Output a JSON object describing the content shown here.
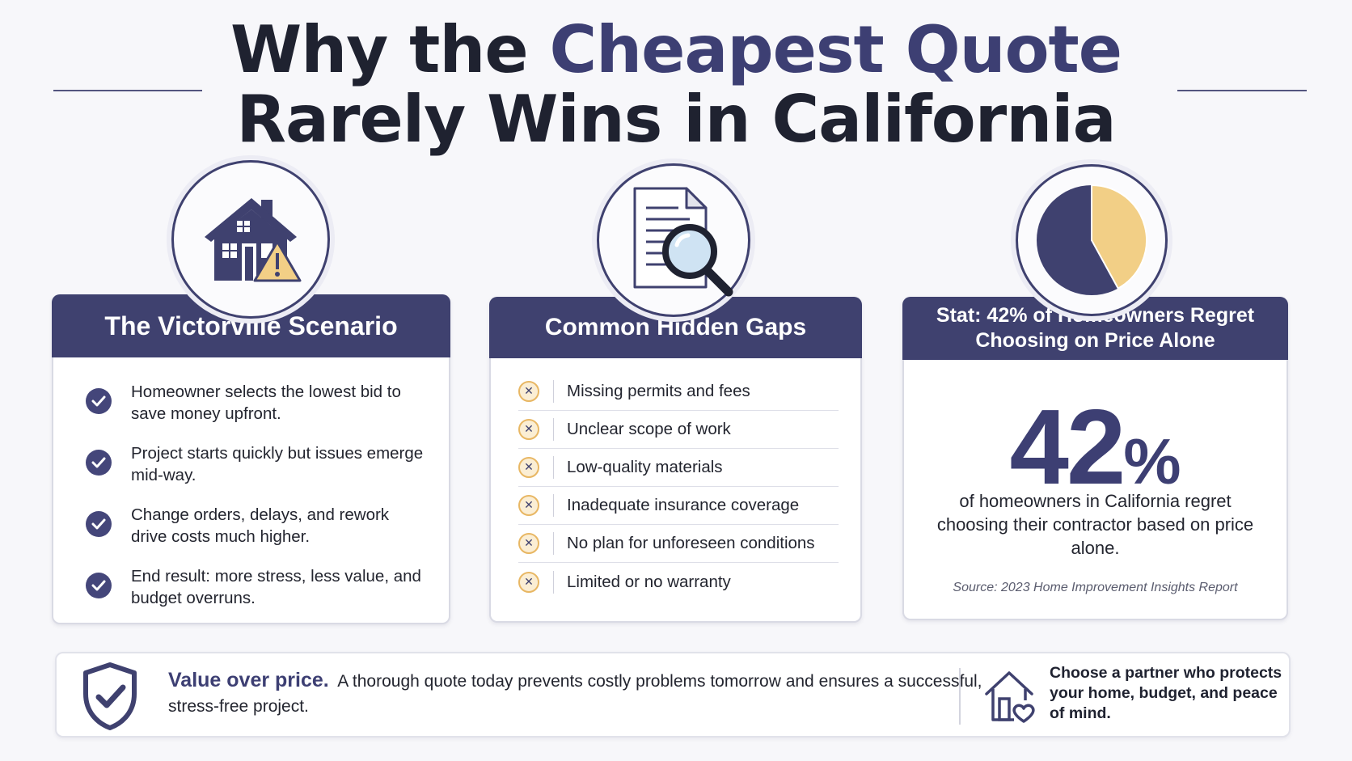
{
  "title": {
    "line1_prefix": "Why the ",
    "line1_accent": "Cheapest Quote",
    "line2": "Rarely Wins in California"
  },
  "cards": {
    "victorville": {
      "heading": "The Victorville Scenario",
      "icon": "house-warning-icon",
      "items": [
        "Homeowner selects the lowest bid to save money upfront.",
        "Project starts quickly but issues emerge mid-way.",
        "Change orders, delays, and rework drive costs much higher.",
        "End result: more stress, less value, and budget overruns."
      ]
    },
    "gaps": {
      "heading": "Common Hidden Gaps",
      "icon": "document-magnifier-icon",
      "items": [
        "Missing permits and fees",
        "Unclear scope of work",
        "Low-quality materials",
        "Inadequate insurance coverage",
        "No plan for unforeseen conditions",
        "Limited or no warranty"
      ]
    },
    "stat": {
      "heading": "Stat: 42% of Homeowners Regret Choosing on Price Alone",
      "icon": "pie-chart-icon",
      "pie_fraction": 0.42,
      "big_number": "42",
      "big_unit": "%",
      "description": "of homeowners in California regret choosing their contractor based on price alone.",
      "source": "Source: 2023 Home Improvement Insights Report"
    }
  },
  "banner": {
    "bold": "Value over price.",
    "text": "A thorough quote today prevents costly problems tomorrow and ensures a successful, stress-free project.",
    "partner": "Choose a partner who protects your home, budget, and peace of mind."
  },
  "colors": {
    "navy": "#3f416f",
    "accent": "#3d3f73",
    "gold": "#f2cf86",
    "x_ring": "#e8b764"
  }
}
